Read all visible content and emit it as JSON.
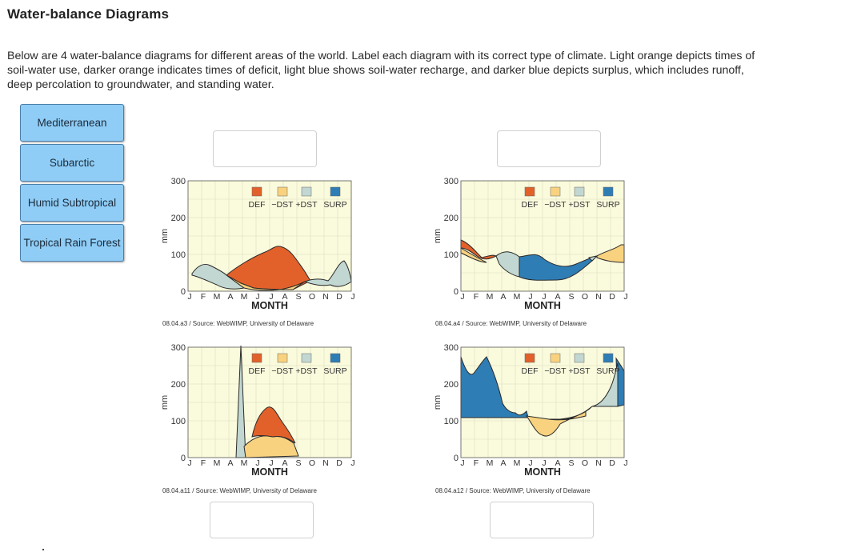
{
  "page": {
    "title": "Water-balance Diagrams",
    "instructions": "Below are 4 water-balance diagrams for different areas of the world. Label each diagram with its correct type of climate. Light orange depicts times of soil-water use, darker orange indicates times of deficit, light blue shows soil-water recharge, and darker blue depicts surplus, which includes runoff, deep percolation to groundwater, and standing water."
  },
  "choices": [
    "Mediterranean",
    "Subarctic",
    "Humid Subtropical",
    "Tropical Rain Forest"
  ],
  "legend": {
    "labels": [
      "DEF",
      "−DST",
      "+DST",
      "SURP"
    ],
    "colors": [
      "#e2612a",
      "#f8d27f",
      "#c2d7d2",
      "#2f7db5"
    ]
  },
  "axis": {
    "y_label": "mm",
    "y_ticks": [
      "300",
      "200",
      "100",
      "0"
    ],
    "months": [
      "J",
      "F",
      "M",
      "A",
      "M",
      "J",
      "J",
      "A",
      "S",
      "O",
      "N",
      "D",
      "J"
    ],
    "x_label": "MONTH"
  },
  "colors": {
    "plot_bg": "#fafadc",
    "grid": "#dcdcc0",
    "choice_bg": "#8fcdf6"
  },
  "diagrams": [
    {
      "id": "a3",
      "source": "08.04.a3 / Source: WebWIMP, University of Delaware"
    },
    {
      "id": "a4",
      "source": "08.04.a4 / Source: WebWIMP, University of Delaware"
    },
    {
      "id": "a11",
      "source": "08.04.a11 / Source: WebWIMP, University of Delaware"
    },
    {
      "id": "a12",
      "source": "08.04.a12 / Source: WebWIMP, University of Delaware"
    }
  ]
}
